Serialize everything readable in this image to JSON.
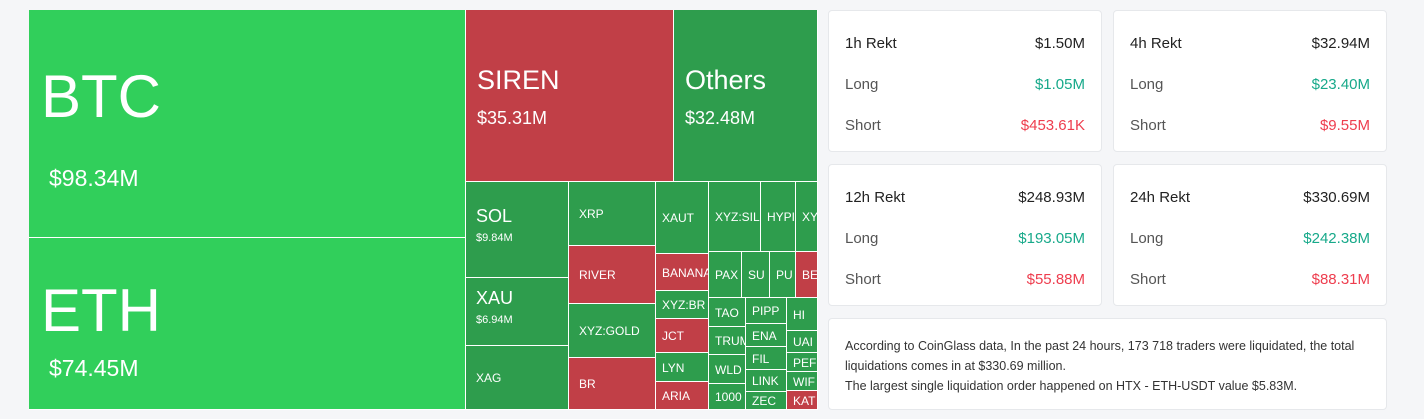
{
  "treemap": {
    "tiles": [
      {
        "label": "BTC",
        "value": "$98.34M",
        "color": "#31cf5b"
      },
      {
        "label": "ETH",
        "value": "$74.45M",
        "color": "#31cf5b"
      },
      {
        "label": "SIREN",
        "value": "$35.31M",
        "color": "#c13f47"
      },
      {
        "label": "Others",
        "value": "$32.48M",
        "color": "#2e9d4d"
      },
      {
        "label": "SOL",
        "value": "$9.84M",
        "color": "#2e9d4d"
      },
      {
        "label": "XAU",
        "value": "$6.94M",
        "color": "#2e9d4d"
      },
      {
        "label": "XAG",
        "color": "#2e9d4d"
      },
      {
        "label": "XRP",
        "color": "#2e9d4d"
      },
      {
        "label": "RIVER",
        "color": "#c13f47"
      },
      {
        "label": "XYZ:GOLD",
        "color": "#2e9d4d"
      },
      {
        "label": "BR",
        "color": "#c13f47"
      },
      {
        "label": "XAUT",
        "color": "#2e9d4d"
      },
      {
        "label": "BANANA",
        "color": "#c13f47"
      },
      {
        "label": "XYZ:BR",
        "color": "#2e9d4d"
      },
      {
        "label": "JCT",
        "color": "#c13f47"
      },
      {
        "label": "LYN",
        "color": "#2e9d4d"
      },
      {
        "label": "ARIA",
        "color": "#c13f47"
      },
      {
        "label": "XYZ:SIL",
        "color": "#2e9d4d"
      },
      {
        "label": "HYPI",
        "color": "#2e9d4d"
      },
      {
        "label": "XY",
        "color": "#2e9d4d"
      },
      {
        "label": "PAX",
        "color": "#2e9d4d"
      },
      {
        "label": "SU",
        "color": "#2e9d4d"
      },
      {
        "label": "PU",
        "color": "#2e9d4d"
      },
      {
        "label": "BE",
        "color": "#c13f47"
      },
      {
        "label": "TAO",
        "color": "#2e9d4d"
      },
      {
        "label": "TRUM",
        "color": "#2e9d4d"
      },
      {
        "label": "WLD",
        "color": "#2e9d4d"
      },
      {
        "label": "1000",
        "color": "#2e9d4d"
      },
      {
        "label": "PIPP",
        "color": "#2e9d4d"
      },
      {
        "label": "ENA",
        "color": "#2e9d4d"
      },
      {
        "label": "FIL",
        "color": "#2e9d4d"
      },
      {
        "label": "LINK",
        "color": "#2e9d4d"
      },
      {
        "label": "ZEC",
        "color": "#2e9d4d"
      },
      {
        "label": "HI",
        "color": "#2e9d4d"
      },
      {
        "label": "UAI",
        "color": "#2e9d4d"
      },
      {
        "label": "PEF",
        "color": "#2e9d4d"
      },
      {
        "label": "WIF",
        "color": "#2e9d4d"
      },
      {
        "label": "KAT",
        "color": "#c13f47"
      }
    ]
  },
  "cards": [
    {
      "title": "1h Rekt",
      "total": "$1.50M",
      "rows": [
        {
          "label": "Long",
          "value": "$1.05M"
        },
        {
          "label": "Short",
          "value": "$453.61K"
        }
      ]
    },
    {
      "title": "4h Rekt",
      "total": "$32.94M",
      "rows": [
        {
          "label": "Long",
          "value": "$23.40M"
        },
        {
          "label": "Short",
          "value": "$9.55M"
        }
      ]
    },
    {
      "title": "12h Rekt",
      "total": "$248.93M",
      "rows": [
        {
          "label": "Long",
          "value": "$193.05M"
        },
        {
          "label": "Short",
          "value": "$55.88M"
        }
      ]
    },
    {
      "title": "24h Rekt",
      "total": "$330.69M",
      "rows": [
        {
          "label": "Long",
          "value": "$242.38M"
        },
        {
          "label": "Short",
          "value": "$88.31M"
        }
      ]
    }
  ],
  "summary": [
    "According to CoinGlass data, In the past 24 hours, 173 718 traders were liquidated, the total liquidations comes in at $330.69 million.",
    "The largest single liquidation order happened on HTX - ETH-USDT value $5.83M."
  ]
}
